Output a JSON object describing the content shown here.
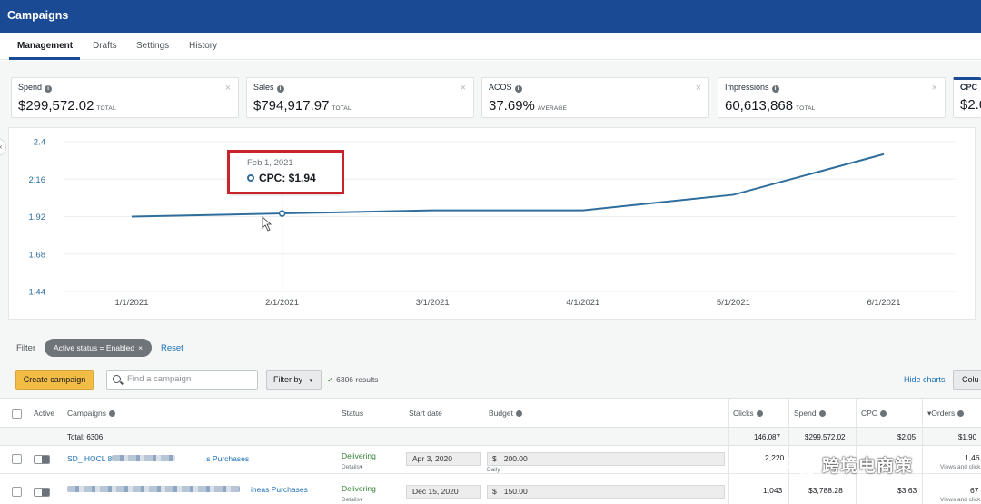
{
  "header": {
    "title": "Campaigns"
  },
  "tabs": [
    {
      "label": "Management",
      "active": true
    },
    {
      "label": "Drafts",
      "active": false
    },
    {
      "label": "Settings",
      "active": false
    },
    {
      "label": "History",
      "active": false
    }
  ],
  "metrics": [
    {
      "label": "Spend",
      "value": "$299,572.02",
      "unit": "TOTAL"
    },
    {
      "label": "Sales",
      "value": "$794,917.97",
      "unit": "TOTAL"
    },
    {
      "label": "ACOS",
      "value": "37.69%",
      "unit": "AVERAGE"
    },
    {
      "label": "Impressions",
      "value": "60,613,868",
      "unit": "TOTAL"
    },
    {
      "label": "CPC",
      "value": "$2.0",
      "unit": ""
    }
  ],
  "metric_close_icon": "close-icon",
  "chart_data": {
    "type": "line",
    "x": [
      "1/1/2021",
      "2/1/2021",
      "3/1/2021",
      "4/1/2021",
      "5/1/2021",
      "6/1/2021"
    ],
    "series": [
      {
        "name": "CPC",
        "values": [
          1.92,
          1.94,
          1.96,
          1.96,
          2.06,
          2.32
        ],
        "color": "#2f6e9c"
      }
    ],
    "y_ticks": [
      "2.4",
      "2.16",
      "1.92",
      "1.68",
      "1.44"
    ],
    "ylim": [
      1.44,
      2.4
    ],
    "grid": true,
    "tooltip": {
      "date": "Feb 1, 2021",
      "label": "CPC: $1.94"
    },
    "highlight_color": "#c8232b"
  },
  "filter": {
    "label": "Filter",
    "chip": "Active status = Enabled",
    "reset": "Reset"
  },
  "toolbar": {
    "create_label": "Create campaign",
    "search_placeholder": "Find a campaign",
    "filter_by": "Filter by",
    "results": "6306 results",
    "hide_charts": "Hide charts",
    "columns": "Colu"
  },
  "table": {
    "headers": {
      "active": "Active",
      "campaigns": "Campaigns",
      "status": "Status",
      "start_date": "Start date",
      "budget": "Budget",
      "clicks": "Clicks",
      "spend": "Spend",
      "cpc": "CPC",
      "orders": "Orders"
    },
    "total": {
      "label": "Total: 6306",
      "clicks": "146,087",
      "spend": "$299,572.02",
      "cpc": "$2.05",
      "orders": "$1,90"
    },
    "rows": [
      {
        "campaign_prefix": "SD_ HOCL 8",
        "campaign_suffix": "s Purchases",
        "status": "Delivering",
        "status_detail": "Details",
        "start_date": "Apr 3, 2020",
        "budget": "200.00",
        "budget_type": "Daily",
        "clicks": "2,220",
        "spend": "",
        "cpc": "",
        "orders": "1,46",
        "orders_sub": "Views and click"
      },
      {
        "campaign_prefix": "",
        "campaign_suffix": "ineas Purchases",
        "status": "Delivering",
        "status_detail": "Details",
        "start_date": "Dec 15, 2020",
        "budget": "150.00",
        "budget_type": "",
        "clicks": "1,043",
        "spend": "$3,788.28",
        "cpc": "$3.63",
        "orders": "67",
        "orders_sub": "Views and click"
      }
    ],
    "currency_symbol": "$"
  },
  "watermark": {
    "text": "跨境电商策"
  }
}
